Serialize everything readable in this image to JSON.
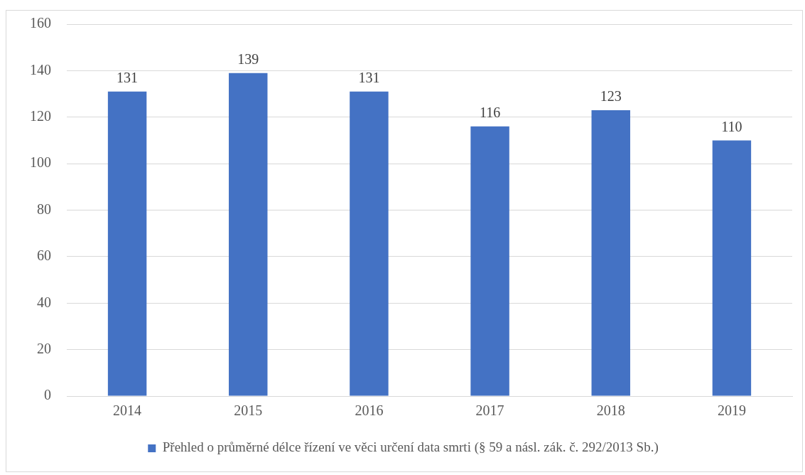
{
  "chart_data": {
    "type": "bar",
    "categories": [
      "2014",
      "2015",
      "2016",
      "2017",
      "2018",
      "2019"
    ],
    "series": [
      {
        "name": "Přehled o průměrné délce řízení ve věci určení data smrti (§ 59 a násl. zák. č. 292/2013 Sb.)",
        "color": "#4472c4",
        "values": [
          131,
          139,
          131,
          116,
          123,
          110
        ]
      }
    ],
    "ylim": [
      0,
      160
    ],
    "yticks": [
      0,
      20,
      40,
      60,
      80,
      100,
      120,
      140,
      160
    ],
    "grid": "y",
    "legend": "bottom",
    "data_labels": true
  }
}
